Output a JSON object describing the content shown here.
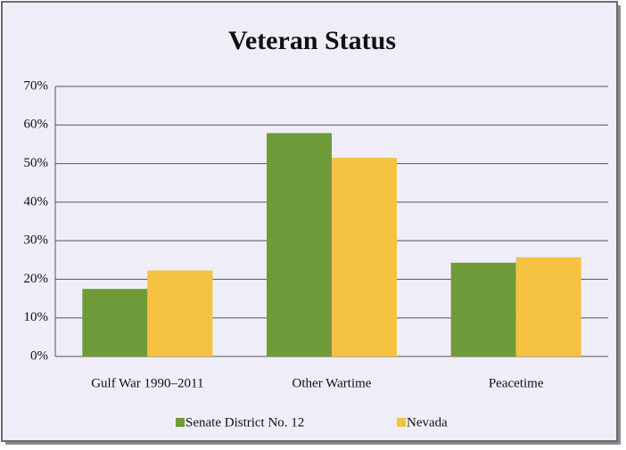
{
  "chart_data": {
    "type": "bar",
    "title": "Veteran Status",
    "categories": [
      "Gulf War 1990–2011",
      "Other Wartime",
      "Peacetime"
    ],
    "series": [
      {
        "name": "Senate District No. 12",
        "color": "#6f9a3a",
        "values": [
          17.5,
          57.9,
          24.3
        ]
      },
      {
        "name": "Nevada",
        "color": "#f5c242",
        "values": [
          22.3,
          51.5,
          25.7
        ]
      }
    ],
    "ylim": [
      0,
      70
    ],
    "yticks": [
      {
        "value": 0,
        "label": "0%"
      },
      {
        "value": 10,
        "label": "10%"
      },
      {
        "value": 20,
        "label": "20%"
      },
      {
        "value": 30,
        "label": "30%"
      },
      {
        "value": 40,
        "label": "40%"
      },
      {
        "value": 50,
        "label": "50%"
      },
      {
        "value": 60,
        "label": "60%"
      },
      {
        "value": 70,
        "label": "70%"
      }
    ],
    "grid": true,
    "legend": "bottom"
  }
}
